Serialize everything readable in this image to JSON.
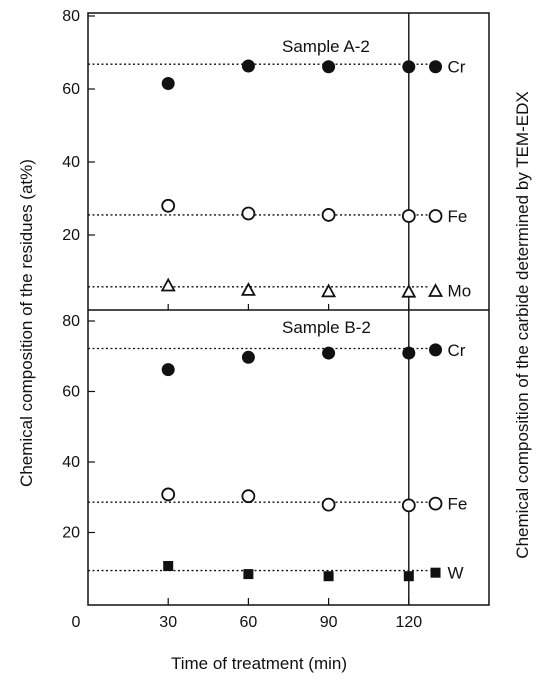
{
  "chart_data": {
    "type": "scatter",
    "xlabel": "Time of treatment (min)",
    "ylabel_left": "Chemical composition of the residues (at%)",
    "ylabel_right": "Chemical composition of the carbide determined by TEM-EDX",
    "x_ticks": [
      "0",
      "30",
      "60",
      "90",
      "120"
    ],
    "xlim": [
      0,
      150
    ],
    "reference_x": 120,
    "reference_x_label": "TEM-EDX",
    "panels": [
      {
        "title": "Sample A-2",
        "ylim": [
          0,
          80
        ],
        "y_ticks": [
          20,
          40,
          60,
          80
        ],
        "series": [
          {
            "name": "Cr",
            "marker": "filled-circle",
            "x": [
              30,
              60,
              90,
              120,
              130
            ],
            "y": [
              61.5,
              66.3,
              66.1,
              66.1,
              66.1
            ],
            "ref_line": 66.8
          },
          {
            "name": "Fe",
            "marker": "open-circle",
            "x": [
              30,
              60,
              90,
              120,
              130
            ],
            "y": [
              28,
              25.9,
              25.5,
              25.2,
              25.2
            ],
            "ref_line": 25.5
          },
          {
            "name": "Mo",
            "marker": "open-triangle",
            "x": [
              30,
              60,
              90,
              120,
              130
            ],
            "y": [
              6.3,
              5.1,
              4.7,
              4.6,
              4.8
            ],
            "ref_line": 5.8
          }
        ]
      },
      {
        "title": "Sample B-2",
        "ylim": [
          0,
          80
        ],
        "y_ticks": [
          20,
          40,
          60,
          80
        ],
        "series": [
          {
            "name": "Cr",
            "marker": "filled-circle",
            "x": [
              30,
              60,
              90,
              120,
              130
            ],
            "y": [
              66.2,
              69.7,
              70.9,
              70.9,
              71.8
            ],
            "ref_line": 72.2
          },
          {
            "name": "Fe",
            "marker": "open-circle",
            "x": [
              30,
              60,
              90,
              120,
              130
            ],
            "y": [
              30.8,
              30.3,
              27.9,
              27.7,
              28.2
            ],
            "ref_line": 28.6
          },
          {
            "name": "W",
            "marker": "filled-square",
            "x": [
              30,
              60,
              90,
              120,
              130
            ],
            "y": [
              10.5,
              8.2,
              7.6,
              7.6,
              8.6
            ],
            "ref_line": 9.2
          }
        ]
      }
    ]
  }
}
